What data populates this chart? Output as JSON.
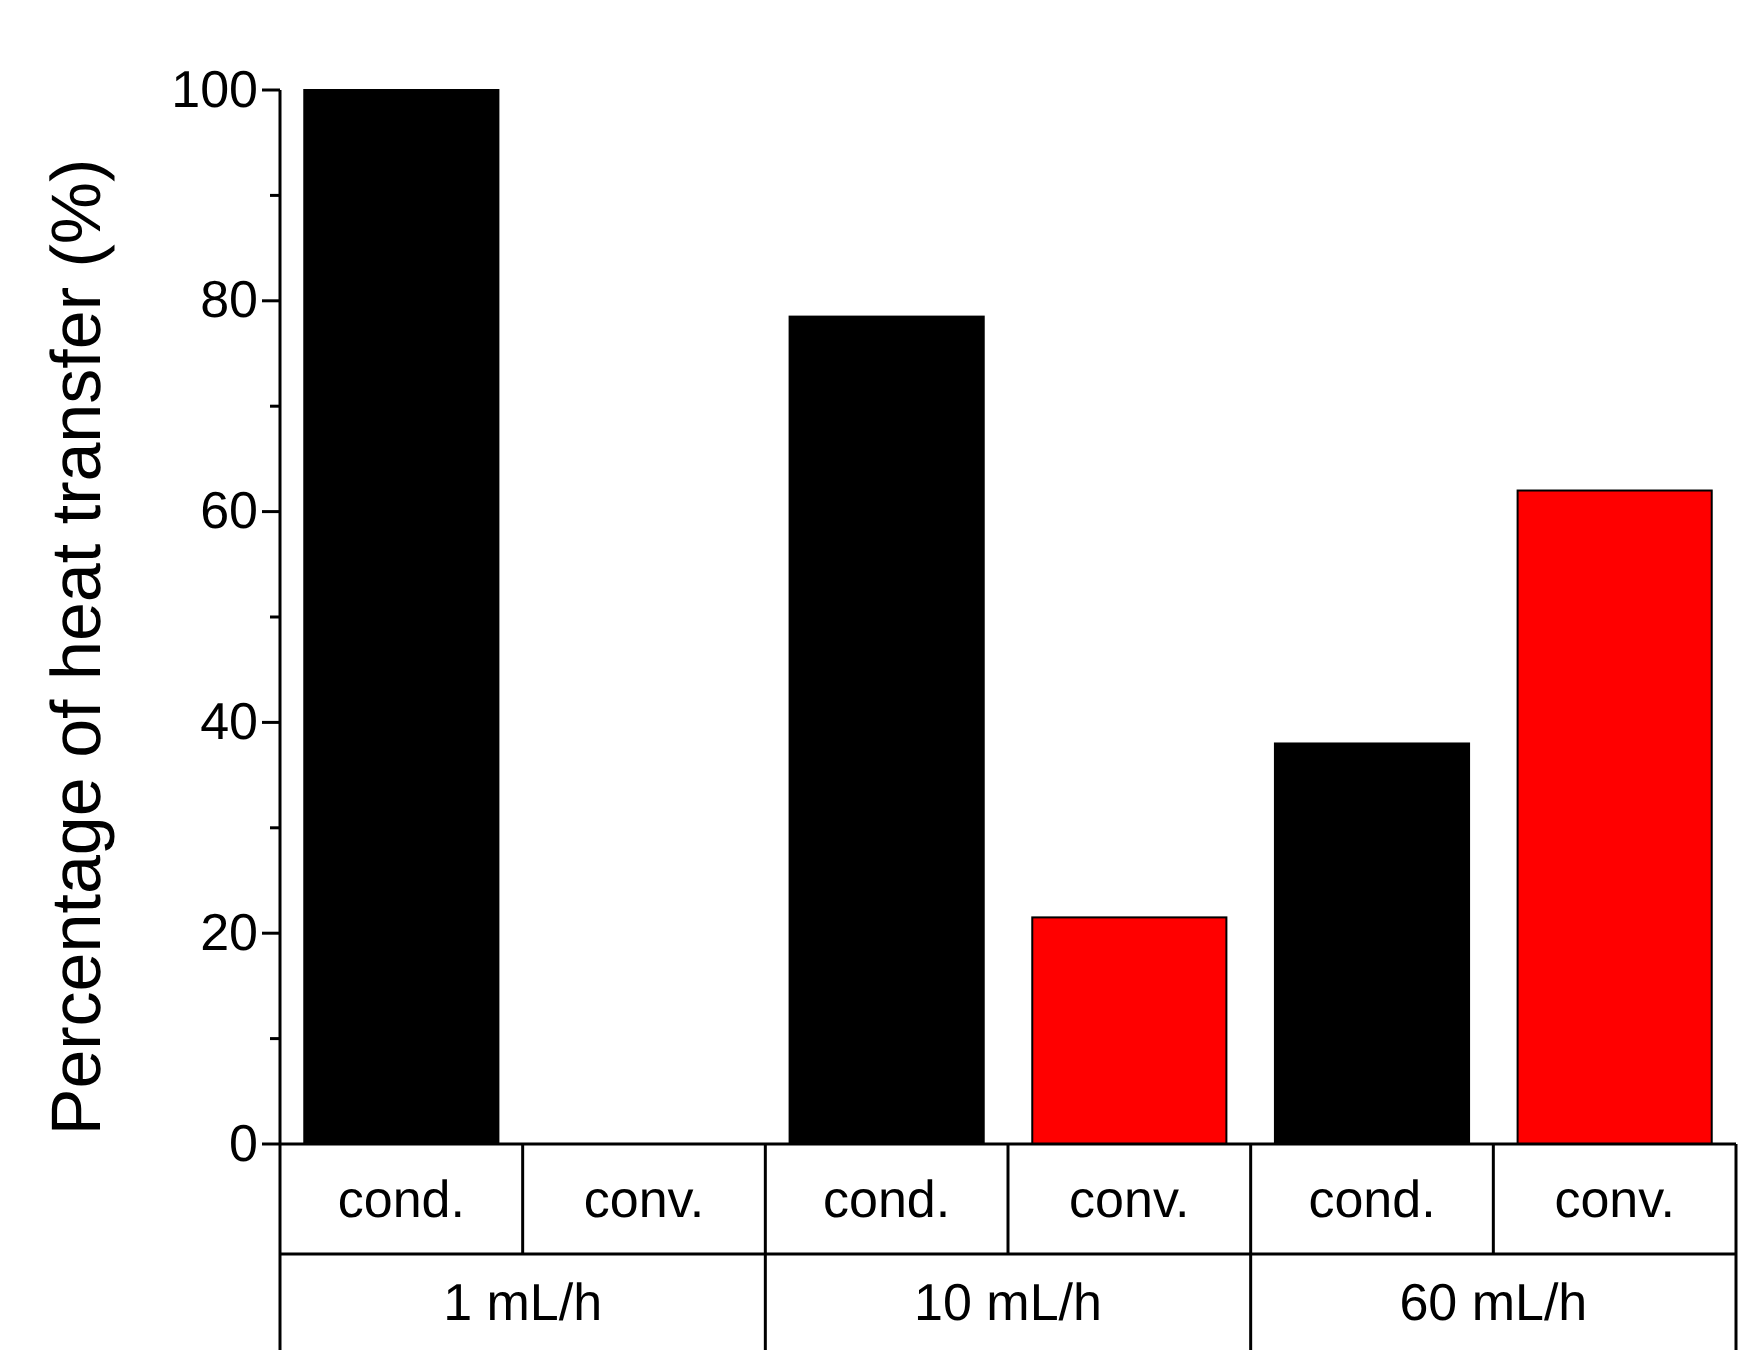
{
  "chart_data": {
    "type": "bar",
    "ylabel": "Percentage of heat transfer (%)",
    "categories": [
      "1 mL/h",
      "10 mL/h",
      "60 mL/h"
    ],
    "series": [
      {
        "name": "cond.",
        "color": "#000000",
        "values": [
          100,
          78.5,
          38
        ]
      },
      {
        "name": "conv.",
        "color": "#ff0000",
        "values": [
          0,
          21.5,
          62
        ]
      }
    ],
    "ylim": [
      0,
      100
    ],
    "yticks": [
      0,
      {
        "value": 10,
        "label": null
      },
      20,
      {
        "value": 30,
        "label": null
      },
      40,
      {
        "value": 50,
        "label": null
      },
      60,
      {
        "value": 70,
        "label": null
      },
      80,
      {
        "value": 90,
        "label": null
      },
      100
    ],
    "grid": false,
    "legend": "bottom"
  }
}
